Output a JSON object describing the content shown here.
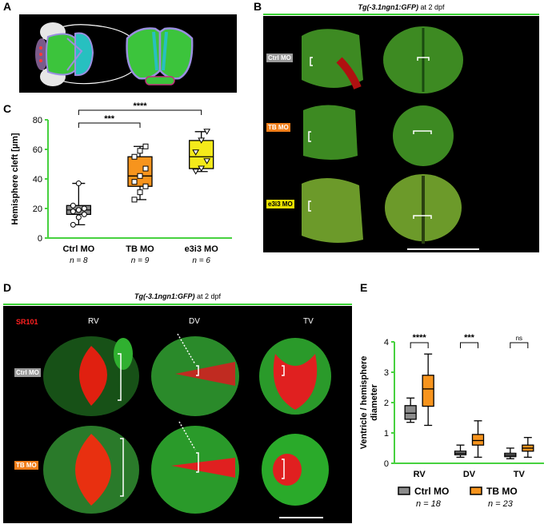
{
  "panels": {
    "A": "A",
    "B": "B",
    "C": "C",
    "D": "D",
    "E": "E"
  },
  "panel_b": {
    "title_italic": "Tg(-3.1ngn1:GFP)",
    "title_plain": " at 2 dpf",
    "labels": [
      "Ctrl MO",
      "TB MO",
      "e3i3 MO"
    ]
  },
  "panel_d": {
    "title_italic": "Tg(-3.1ngn1:GFP)",
    "title_plain": " at 2 dpf",
    "stain": "SR101",
    "columns": [
      "RV",
      "DV",
      "TV"
    ],
    "rows": [
      "Ctrl MO",
      "TB MO"
    ]
  },
  "chart_data": [
    {
      "type": "box",
      "panel": "C",
      "ylabel": "Hemisphere cleft [µm]",
      "ylim": [
        0,
        80
      ],
      "yticks": [
        0,
        20,
        40,
        60,
        80
      ],
      "categories": [
        "Ctrl MO",
        "TB MO",
        "e3i3 MO"
      ],
      "n_labels": [
        "n = 8",
        "n = 9",
        "n = 6"
      ],
      "colors": [
        "#8c8c8c",
        "#f7941d",
        "#f4ea1a"
      ],
      "boxes": [
        {
          "min": 9,
          "q1": 16,
          "median": 19,
          "q3": 22,
          "max": 37
        },
        {
          "min": 26,
          "q1": 35,
          "median": 42,
          "q3": 55,
          "max": 62
        },
        {
          "min": 45,
          "q1": 47,
          "median": 55,
          "q3": 66,
          "max": 72
        }
      ],
      "points": [
        [
          9,
          14,
          16,
          18,
          19,
          20,
          22,
          37
        ],
        [
          26,
          31,
          35,
          38,
          42,
          47,
          55,
          59,
          62
        ],
        [
          45,
          47,
          52,
          58,
          66,
          72
        ]
      ],
      "significance": [
        {
          "pair": [
            0,
            1
          ],
          "label": "***"
        },
        {
          "pair": [
            0,
            2
          ],
          "label": "****"
        }
      ]
    },
    {
      "type": "box",
      "panel": "E",
      "ylabel_lines": [
        "Ventricle / hemisphere",
        "diameter"
      ],
      "ylim": [
        0,
        4
      ],
      "yticks": [
        0,
        1,
        2,
        3,
        4
      ],
      "categories": [
        "RV",
        "DV",
        "TV"
      ],
      "series": [
        {
          "name": "Ctrl MO",
          "n_label": "n = 18",
          "color": "#8c8c8c",
          "boxes": [
            {
              "min": 1.35,
              "q1": 1.45,
              "median": 1.65,
              "q3": 1.9,
              "max": 2.15
            },
            {
              "min": 0.2,
              "q1": 0.28,
              "median": 0.33,
              "q3": 0.4,
              "max": 0.6
            },
            {
              "min": 0.15,
              "q1": 0.22,
              "median": 0.27,
              "q3": 0.33,
              "max": 0.5
            }
          ]
        },
        {
          "name": "TB MO",
          "n_label": "n = 23",
          "color": "#f7941d",
          "boxes": [
            {
              "min": 1.25,
              "q1": 1.88,
              "median": 2.45,
              "q3": 2.9,
              "max": 3.6
            },
            {
              "min": 0.2,
              "q1": 0.6,
              "median": 0.75,
              "q3": 0.95,
              "max": 1.4
            },
            {
              "min": 0.2,
              "q1": 0.4,
              "median": 0.5,
              "q3": 0.6,
              "max": 0.85
            }
          ]
        }
      ],
      "significance": [
        "****",
        "***",
        "ns"
      ]
    }
  ]
}
